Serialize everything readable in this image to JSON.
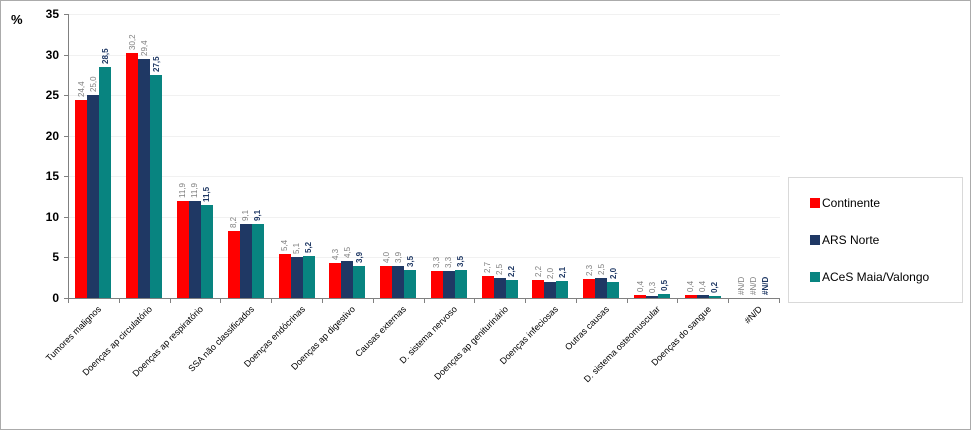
{
  "chart_data": {
    "type": "bar",
    "title": "",
    "ylabel": "%",
    "xlabel": "",
    "ylim": [
      0,
      35
    ],
    "yticks": [
      0,
      5,
      10,
      15,
      20,
      25,
      30,
      35
    ],
    "grid": "horizontal",
    "legend_position": "right",
    "decimal_separator": ",",
    "nd_text": "#N/D",
    "categories": [
      "Tumores malignos",
      "Doenças ap circulatório",
      "Doenças ap respiratório",
      "SSA não classificados",
      "Doenças endócrinas",
      "Doenças ap digestivo",
      "Causas externas",
      "D. sistema nervoso",
      "Doenças ap geniturinário",
      "Doenças infeciosas",
      "Outras causas",
      "D. sistema osteomuscular",
      "Doenças do sangue",
      "#N/D"
    ],
    "series": [
      {
        "name": "Continente",
        "color": "#ff0000",
        "values": [
          24.4,
          30.2,
          11.9,
          8.2,
          5.4,
          4.3,
          4.0,
          3.3,
          2.7,
          2.2,
          2.3,
          0.4,
          0.4,
          null
        ],
        "value_labels": [
          "24,4",
          "30,2",
          "11,9",
          "8,2",
          "5,4",
          "4,3",
          "4,0",
          "3,3",
          "2,7",
          "2,2",
          "2,3",
          "0,4",
          "0,4",
          "#N/D"
        ]
      },
      {
        "name": "ARS Norte",
        "color": "#1f3864",
        "values": [
          25.0,
          29.4,
          11.9,
          9.1,
          5.1,
          4.5,
          3.9,
          3.3,
          2.5,
          2.0,
          2.5,
          0.3,
          0.4,
          null
        ],
        "value_labels": [
          "25,0",
          "29,4",
          "11,9",
          "9,1",
          "5,1",
          "4,5",
          "3,9",
          "3,3",
          "2,5",
          "2,0",
          "2,5",
          "0,3",
          "0,4",
          "#N/D"
        ]
      },
      {
        "name": "ACeS Maia/Valongo",
        "color": "#088480",
        "values": [
          28.5,
          27.5,
          11.5,
          9.1,
          5.2,
          3.9,
          3.5,
          3.5,
          2.2,
          2.1,
          2.0,
          0.5,
          0.2,
          null
        ],
        "value_labels": [
          "28,5",
          "27,5",
          "11,5",
          "9,1",
          "5,2",
          "3,9",
          "3,5",
          "3,5",
          "2,2",
          "2,1",
          "2,0",
          "0,5",
          "0,2",
          "#N/D"
        ]
      }
    ],
    "value_label_colors": {
      "series_1_2": "#7f7f7f",
      "series_3": "#1f3864"
    }
  }
}
